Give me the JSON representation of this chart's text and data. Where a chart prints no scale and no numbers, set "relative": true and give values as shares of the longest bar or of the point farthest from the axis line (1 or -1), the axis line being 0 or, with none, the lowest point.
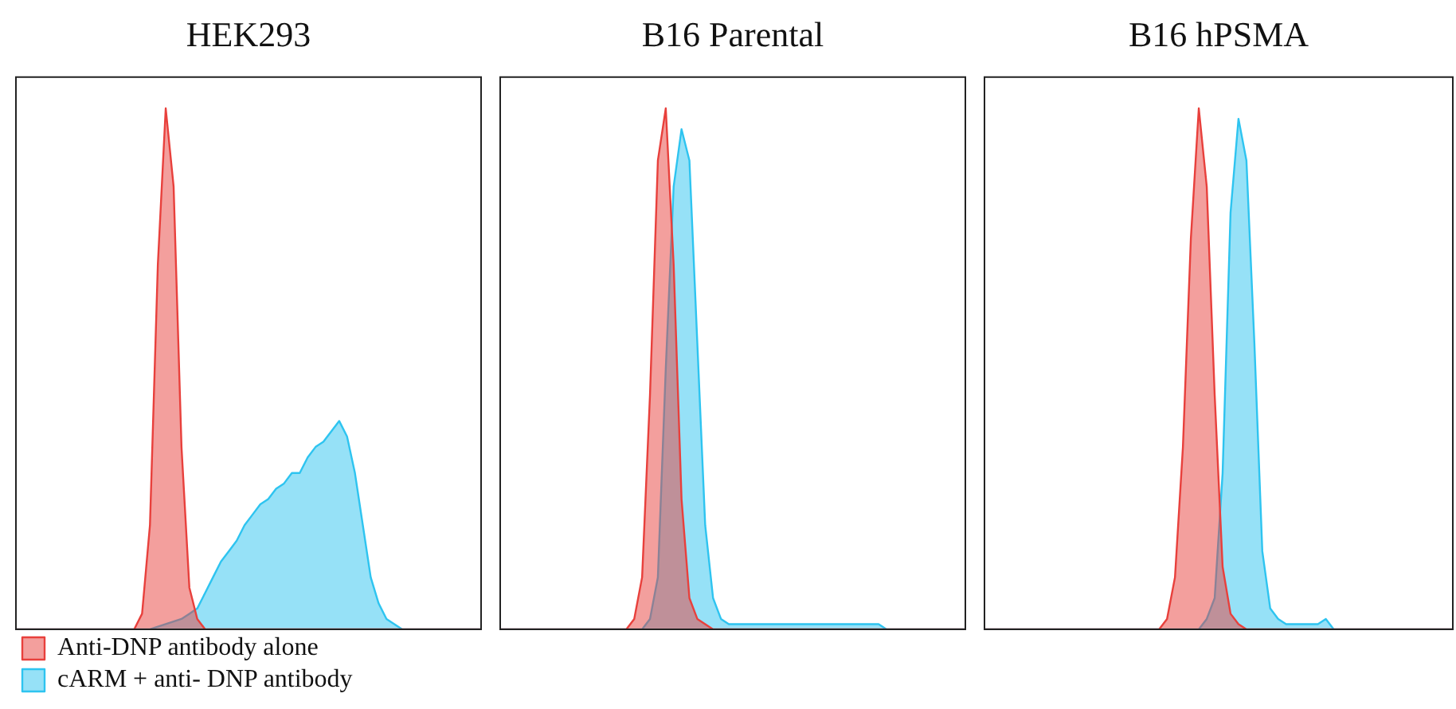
{
  "chart_data": [
    {
      "type": "area",
      "title": "HEK293",
      "relative": true,
      "legend": "bottom left",
      "categories": [
        null,
        null,
        null,
        null,
        null,
        null,
        null,
        null,
        null,
        null,
        null,
        null,
        null,
        null,
        null,
        null,
        null,
        null,
        null,
        null,
        null,
        null,
        null,
        null,
        null,
        null,
        null,
        null,
        null,
        null,
        null,
        null,
        null,
        null,
        null,
        null,
        null,
        null,
        null,
        null,
        null,
        null,
        null,
        null,
        null,
        null,
        null,
        null,
        null,
        null,
        null,
        null,
        null,
        null,
        null,
        null,
        null,
        null,
        null,
        null
      ],
      "series": [
        {
          "name": "Anti-DNP antibody alone",
          "color": "#e8403c",
          "values": [
            0,
            0,
            0,
            0,
            0,
            0,
            0,
            0,
            0,
            0,
            0,
            0,
            0,
            0,
            0,
            0,
            0.03,
            0.2,
            0.7,
            1,
            0.85,
            0.35,
            0.08,
            0.02,
            0,
            0,
            0,
            0,
            0,
            0,
            0,
            0,
            0,
            0,
            0,
            0,
            0,
            0,
            0,
            0,
            0,
            0,
            0,
            0,
            0,
            0,
            0,
            0,
            0,
            0,
            0,
            0,
            0,
            0,
            0,
            0,
            0,
            0,
            0,
            0
          ]
        },
        {
          "name": "cARM + anti- DNP antibody",
          "color": "#2ec4f0",
          "values": [
            0,
            0,
            0,
            0,
            0,
            0,
            0,
            0,
            0,
            0,
            0,
            0,
            0,
            0,
            0,
            0,
            0,
            0,
            0.005,
            0.01,
            0.015,
            0.02,
            0.03,
            0.04,
            0.07,
            0.1,
            0.13,
            0.15,
            0.17,
            0.2,
            0.22,
            0.24,
            0.25,
            0.27,
            0.28,
            0.3,
            0.3,
            0.33,
            0.35,
            0.36,
            0.38,
            0.4,
            0.37,
            0.3,
            0.2,
            0.1,
            0.05,
            0.02,
            0.01,
            0,
            0,
            0,
            0,
            0,
            0,
            0,
            0,
            0,
            0,
            0
          ]
        }
      ]
    },
    {
      "type": "area",
      "title": "B16 Parental",
      "relative": true,
      "categories": [
        null,
        null,
        null,
        null,
        null,
        null,
        null,
        null,
        null,
        null,
        null,
        null,
        null,
        null,
        null,
        null,
        null,
        null,
        null,
        null,
        null,
        null,
        null,
        null,
        null,
        null,
        null,
        null,
        null,
        null,
        null,
        null,
        null,
        null,
        null,
        null,
        null,
        null,
        null,
        null,
        null,
        null,
        null,
        null,
        null,
        null,
        null,
        null,
        null,
        null,
        null,
        null,
        null,
        null,
        null,
        null,
        null,
        null,
        null,
        null
      ],
      "series": [
        {
          "color": "#e8403c",
          "values": [
            0,
            0,
            0,
            0,
            0,
            0,
            0,
            0,
            0,
            0,
            0,
            0,
            0,
            0,
            0,
            0,
            0,
            0.02,
            0.1,
            0.45,
            0.9,
            1,
            0.7,
            0.25,
            0.06,
            0.02,
            0.01,
            0,
            0,
            0,
            0,
            0,
            0,
            0,
            0,
            0,
            0,
            0,
            0,
            0,
            0,
            0,
            0,
            0,
            0,
            0,
            0,
            0,
            0,
            0,
            0,
            0,
            0,
            0,
            0,
            0,
            0,
            0,
            0,
            0
          ]
        },
        {
          "color": "#2ec4f0",
          "values": [
            0,
            0,
            0,
            0,
            0,
            0,
            0,
            0,
            0,
            0,
            0,
            0,
            0,
            0,
            0,
            0,
            0,
            0,
            0,
            0.02,
            0.1,
            0.5,
            0.85,
            0.96,
            0.9,
            0.55,
            0.2,
            0.06,
            0.02,
            0.01,
            0.01,
            0.01,
            0.01,
            0.01,
            0.01,
            0.01,
            0.01,
            0.01,
            0.01,
            0.01,
            0.01,
            0.01,
            0.01,
            0.01,
            0.01,
            0.01,
            0.01,
            0.01,
            0.01,
            0,
            0,
            0,
            0,
            0,
            0,
            0,
            0,
            0,
            0,
            0
          ]
        }
      ]
    },
    {
      "type": "area",
      "title": "B16 hPSMA",
      "relative": true,
      "categories": [
        null,
        null,
        null,
        null,
        null,
        null,
        null,
        null,
        null,
        null,
        null,
        null,
        null,
        null,
        null,
        null,
        null,
        null,
        null,
        null,
        null,
        null,
        null,
        null,
        null,
        null,
        null,
        null,
        null,
        null,
        null,
        null,
        null,
        null,
        null,
        null,
        null,
        null,
        null,
        null,
        null,
        null,
        null,
        null,
        null,
        null,
        null,
        null,
        null,
        null,
        null,
        null,
        null,
        null,
        null,
        null,
        null,
        null,
        null,
        null
      ],
      "series": [
        {
          "color": "#e8403c",
          "values": [
            0,
            0,
            0,
            0,
            0,
            0,
            0,
            0,
            0,
            0,
            0,
            0,
            0,
            0,
            0,
            0,
            0,
            0,
            0,
            0,
            0,
            0,
            0,
            0.02,
            0.1,
            0.35,
            0.75,
            1,
            0.85,
            0.45,
            0.12,
            0.03,
            0.01,
            0,
            0,
            0,
            0,
            0,
            0,
            0,
            0,
            0,
            0,
            0,
            0,
            0,
            0,
            0,
            0,
            0,
            0,
            0,
            0,
            0,
            0,
            0,
            0,
            0,
            0,
            0
          ]
        },
        {
          "color": "#2ec4f0",
          "values": [
            0,
            0,
            0,
            0,
            0,
            0,
            0,
            0,
            0,
            0,
            0,
            0,
            0,
            0,
            0,
            0,
            0,
            0,
            0,
            0,
            0,
            0,
            0,
            0,
            0,
            0,
            0,
            0,
            0.02,
            0.06,
            0.3,
            0.8,
            0.98,
            0.9,
            0.55,
            0.15,
            0.04,
            0.02,
            0.01,
            0.01,
            0.01,
            0.01,
            0.01,
            0.02,
            0,
            0,
            0,
            0,
            0,
            0,
            0,
            0,
            0,
            0,
            0,
            0,
            0,
            0,
            0,
            0
          ]
        }
      ]
    }
  ]
}
